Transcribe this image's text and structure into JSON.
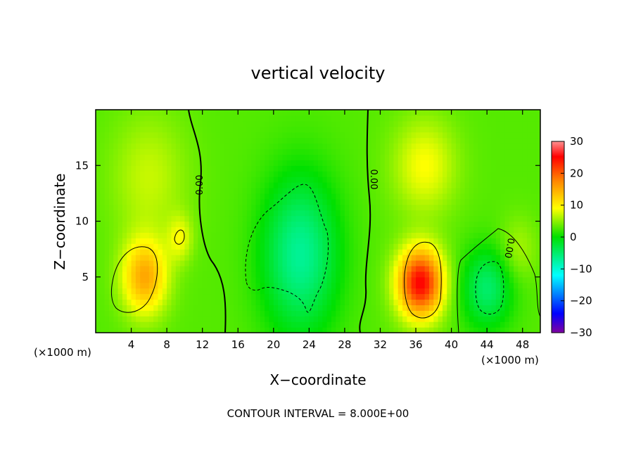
{
  "chart_data": {
    "type": "heatmap",
    "title": "vertical velocity",
    "xlabel": "X−coordinate",
    "ylabel": "Z−coordinate",
    "x_unit_left": "(×1000 m)",
    "x_unit_right": "(×1000 m)",
    "footer": "CONTOUR INTERVAL = 8.000E+00",
    "xlim": [
      0,
      50
    ],
    "ylim": [
      0,
      20
    ],
    "x_ticks": [
      4,
      8,
      12,
      16,
      20,
      24,
      28,
      32,
      36,
      40,
      44,
      48
    ],
    "x_tick_labels": [
      "4",
      "8",
      "12",
      "16",
      "20",
      "24",
      "28",
      "32",
      "36",
      "40",
      "44",
      "48"
    ],
    "y_ticks": [
      5,
      10,
      15
    ],
    "y_tick_labels": [
      "5",
      "10",
      "15"
    ],
    "colorbar": {
      "range": [
        -30,
        30
      ],
      "ticks": [
        30,
        20,
        10,
        0,
        -10,
        -20,
        -30
      ],
      "tick_labels": [
        "30",
        "20",
        "10",
        "0",
        "−10",
        "−20",
        "−30"
      ]
    },
    "contour_labels": [
      "0.00",
      "0.00",
      "0.00"
    ],
    "features": [
      {
        "x": 5.5,
        "z": 5.0,
        "w": 12,
        "sx": 1.8,
        "sz": 2.4
      },
      {
        "x": 9.5,
        "z": 8.5,
        "w": 5,
        "sx": 1.0,
        "sz": 1.5
      },
      {
        "x": 36.5,
        "z": 4.5,
        "w": 22,
        "sx": 1.8,
        "sz": 2.2
      },
      {
        "x": 37.0,
        "z": 15.0,
        "w": 6,
        "sx": 2.5,
        "sz": 3.0
      },
      {
        "x": 23.0,
        "z": 7.0,
        "w": -10,
        "sx": 3.0,
        "sz": 5.0
      },
      {
        "x": 44.0,
        "z": 4.0,
        "w": -8,
        "sx": 2.0,
        "sz": 2.5
      },
      {
        "x": 6.0,
        "z": 14.0,
        "w": 4,
        "sx": 3.0,
        "sz": 4.0
      },
      {
        "x": 47.5,
        "z": 7.5,
        "w": 3,
        "sx": 1.5,
        "sz": 2.0
      }
    ],
    "background_w": 3
  }
}
